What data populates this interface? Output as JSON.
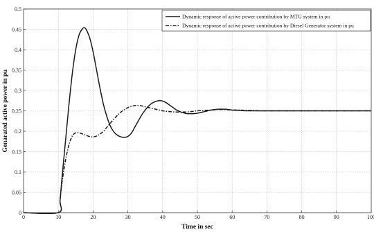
{
  "chart_data": {
    "type": "line",
    "title": "",
    "xlabel": "Time in sec",
    "ylabel": "Genarated active power in pu",
    "xlim": [
      0,
      100
    ],
    "ylim": [
      0,
      0.5
    ],
    "xticks": [
      0,
      10,
      20,
      30,
      40,
      50,
      60,
      70,
      80,
      90,
      100
    ],
    "yticks": [
      0,
      0.05,
      0.1,
      0.15,
      0.2,
      0.25,
      0.3,
      0.35,
      0.4,
      0.45,
      0.5
    ],
    "grid": true,
    "legend_position": "top-right",
    "series": [
      {
        "name": "Dynamic response of active power contribution by MTG system in pu",
        "line_style": "solid",
        "color": "#1a1a1a",
        "x": [
          0,
          10,
          10.5,
          11,
          12,
          13,
          14,
          15,
          16,
          17,
          17.5,
          18,
          19,
          20,
          21,
          22,
          23,
          24,
          25,
          26,
          27,
          28,
          29,
          30,
          31,
          32,
          33,
          34,
          35,
          36,
          37,
          38,
          39,
          40,
          41,
          42,
          43,
          44,
          45,
          46,
          47,
          48,
          49,
          50,
          51,
          52,
          53,
          54,
          55,
          56,
          57,
          58,
          59,
          60,
          62,
          64,
          66,
          68,
          70,
          75,
          80,
          85,
          90,
          95,
          100
        ],
        "y": [
          0,
          0,
          0.03,
          0.08,
          0.17,
          0.26,
          0.34,
          0.4,
          0.437,
          0.452,
          0.454,
          0.45,
          0.43,
          0.395,
          0.35,
          0.305,
          0.265,
          0.235,
          0.212,
          0.198,
          0.19,
          0.186,
          0.185,
          0.187,
          0.195,
          0.21,
          0.225,
          0.24,
          0.252,
          0.262,
          0.269,
          0.273,
          0.275,
          0.274,
          0.27,
          0.264,
          0.258,
          0.252,
          0.248,
          0.245,
          0.243,
          0.243,
          0.243,
          0.244,
          0.246,
          0.248,
          0.25,
          0.252,
          0.253,
          0.254,
          0.254,
          0.254,
          0.253,
          0.252,
          0.251,
          0.25,
          0.25,
          0.25,
          0.25,
          0.25,
          0.25,
          0.25,
          0.25,
          0.25,
          0.25
        ]
      },
      {
        "name": "Dynamic response of active power contribution by Diesel Generator system in pu",
        "line_style": "dashdot",
        "color": "#1a1a1a",
        "x": [
          0,
          10,
          10.5,
          11,
          12,
          13,
          14,
          15,
          16,
          17,
          18,
          19,
          20,
          21,
          22,
          23,
          24,
          25,
          26,
          27,
          28,
          29,
          30,
          31,
          32,
          33,
          34,
          35,
          36,
          37,
          38,
          39,
          40,
          42,
          44,
          46,
          48,
          50,
          52,
          54,
          56,
          58,
          60,
          62,
          64,
          66,
          68,
          70,
          75,
          80,
          85,
          90,
          95,
          100
        ],
        "y": [
          0,
          0,
          0.03,
          0.07,
          0.125,
          0.165,
          0.188,
          0.196,
          0.196,
          0.193,
          0.19,
          0.187,
          0.186,
          0.188,
          0.193,
          0.2,
          0.21,
          0.22,
          0.23,
          0.239,
          0.247,
          0.253,
          0.258,
          0.261,
          0.263,
          0.263,
          0.262,
          0.26,
          0.258,
          0.256,
          0.254,
          0.252,
          0.25,
          0.248,
          0.247,
          0.247,
          0.248,
          0.25,
          0.251,
          0.252,
          0.253,
          0.253,
          0.252,
          0.252,
          0.251,
          0.251,
          0.25,
          0.25,
          0.25,
          0.25,
          0.25,
          0.25,
          0.25,
          0.25
        ]
      }
    ]
  }
}
